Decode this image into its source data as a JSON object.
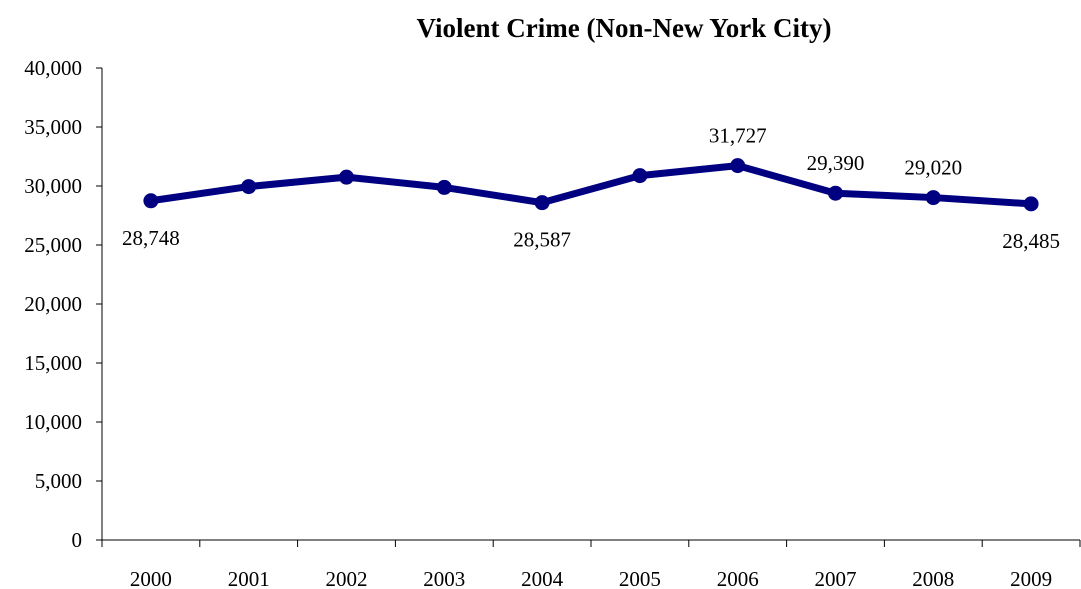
{
  "chart_data": {
    "type": "line",
    "title": "Violent Crime (Non-New York City)",
    "xlabel": "",
    "ylabel": "",
    "categories": [
      "2000",
      "2001",
      "2002",
      "2003",
      "2004",
      "2005",
      "2006",
      "2007",
      "2008",
      "2009"
    ],
    "series": [
      {
        "values": [
          28748,
          29950,
          30750,
          29880,
          28587,
          30880,
          31727,
          29390,
          29020,
          28485
        ],
        "color": "#000080"
      }
    ],
    "data_labels": [
      {
        "index": 0,
        "text": "28,748",
        "position": "below"
      },
      {
        "index": 4,
        "text": "28,587",
        "position": "below"
      },
      {
        "index": 6,
        "text": "31,727",
        "position": "above"
      },
      {
        "index": 7,
        "text": "29,390",
        "position": "above"
      },
      {
        "index": 8,
        "text": "29,020",
        "position": "above"
      },
      {
        "index": 9,
        "text": "28,485",
        "position": "below"
      }
    ],
    "ylim": [
      0,
      40000
    ],
    "yticks": [
      0,
      5000,
      10000,
      15000,
      20000,
      25000,
      30000,
      35000,
      40000
    ],
    "ytick_labels": [
      "0",
      "5,000",
      "10,000",
      "15,000",
      "20,000",
      "25,000",
      "30,000",
      "35,000",
      "40,000"
    ],
    "grid": false,
    "legend": "none"
  }
}
